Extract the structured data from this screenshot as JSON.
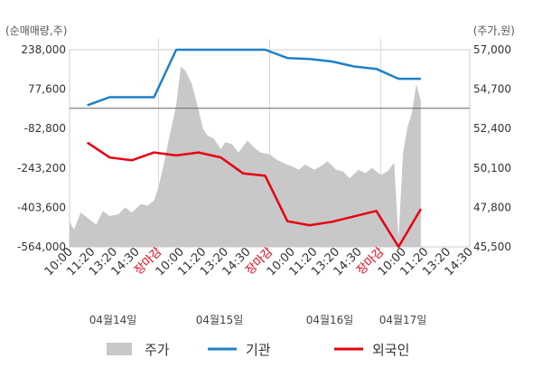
{
  "chart_data": {
    "type": "line",
    "left_unit": "(순매매량,주)",
    "right_unit": "(주가,원)",
    "left_ticks": [
      "238,000",
      "77,600",
      "-82,800",
      "-243,200",
      "-403,600",
      "-564,000"
    ],
    "right_ticks": [
      "57,000",
      "54,700",
      "52,400",
      "50,100",
      "47,800",
      "45,500"
    ],
    "left_range": [
      -564000,
      238000
    ],
    "right_range": [
      45500,
      57000
    ],
    "x_ticks": [
      {
        "label": "10:00",
        "color": "#333333"
      },
      {
        "label": "11:20",
        "color": "#333333"
      },
      {
        "label": "13:20",
        "color": "#333333"
      },
      {
        "label": "14:30",
        "color": "#333333"
      },
      {
        "label": "장마감",
        "color": "#e60012"
      },
      {
        "label": "10:00",
        "color": "#333333"
      },
      {
        "label": "11:20",
        "color": "#333333"
      },
      {
        "label": "13:20",
        "color": "#333333"
      },
      {
        "label": "14:30",
        "color": "#333333"
      },
      {
        "label": "장마감",
        "color": "#e60012"
      },
      {
        "label": "10:00",
        "color": "#333333"
      },
      {
        "label": "11:20",
        "color": "#333333"
      },
      {
        "label": "13:20",
        "color": "#333333"
      },
      {
        "label": "14:30",
        "color": "#333333"
      },
      {
        "label": "장마감",
        "color": "#e60012"
      },
      {
        "label": "10:00",
        "color": "#333333"
      },
      {
        "label": "11:20",
        "color": "#333333"
      },
      {
        "label": "13:20",
        "color": "#333333"
      },
      {
        "label": "14:30",
        "color": "#333333"
      }
    ],
    "dates": [
      "04월14일",
      "04월15일",
      "04월16일",
      "04월17일"
    ],
    "legend": [
      {
        "label": "주가",
        "color": "#c8c8c8"
      },
      {
        "label": "기관",
        "color": "#1f7fc8"
      },
      {
        "label": "외국인",
        "color": "#e60012"
      }
    ],
    "series": [
      {
        "name": "기관",
        "color": "#1f7fc8",
        "axis": "left",
        "x": [
          0.8,
          1.8,
          3.8,
          4.8,
          5.8,
          8.8,
          9.8,
          10.8,
          11.8,
          12.8,
          13.8,
          14.8,
          15.8
        ],
        "values": [
          12000,
          45000,
          45000,
          238000,
          238000,
          238000,
          204000,
          200000,
          190000,
          170000,
          160000,
          120000,
          120000
        ]
      },
      {
        "name": "외국인",
        "color": "#e60012",
        "axis": "left",
        "x": [
          0.8,
          1.8,
          2.8,
          3.8,
          4.8,
          5.8,
          6.8,
          7.8,
          8.8,
          9.8,
          10.8,
          11.8,
          12.8,
          13.8,
          14.8,
          15.8
        ],
        "values": [
          -140000,
          -200000,
          -212000,
          -180000,
          -192000,
          -180000,
          -200000,
          -265000,
          -275000,
          -460000,
          -476000,
          -462000,
          -440000,
          -418000,
          -564000,
          -410000
        ]
      }
    ],
    "price": {
      "name": "주가",
      "color": "#c8c8c8",
      "axis": "right",
      "x": [
        0,
        0.2,
        0.5,
        0.8,
        1.2,
        1.5,
        1.8,
        2.2,
        2.5,
        2.8,
        3.2,
        3.5,
        3.8,
        4.0,
        4.2,
        4.5,
        4.8,
        5.0,
        5.2,
        5.5,
        5.8,
        6.0,
        6.2,
        6.5,
        6.8,
        7.0,
        7.3,
        7.6,
        8.0,
        8.3,
        8.6,
        9.0,
        9.3,
        9.6,
        10.0,
        10.3,
        10.6,
        11.0,
        11.3,
        11.6,
        12.0,
        12.3,
        12.6,
        13.0,
        13.3,
        13.6,
        14.0,
        14.3,
        14.6,
        14.8,
        15.0,
        15.2,
        15.4,
        15.6,
        15.8
      ],
      "values": [
        47000,
        46500,
        47500,
        47200,
        46800,
        47600,
        47300,
        47400,
        47800,
        47500,
        48000,
        47900,
        48200,
        49000,
        50100,
        52000,
        53800,
        56000,
        55800,
        55000,
        53500,
        52400,
        52000,
        51800,
        51200,
        51600,
        51500,
        51000,
        51700,
        51300,
        51000,
        50900,
        50600,
        50400,
        50200,
        50000,
        50300,
        50000,
        50200,
        50500,
        50000,
        49900,
        49500,
        50000,
        49800,
        50100,
        49700,
        49900,
        50400,
        46000,
        51000,
        52500,
        53300,
        55000,
        54000
      ]
    }
  }
}
